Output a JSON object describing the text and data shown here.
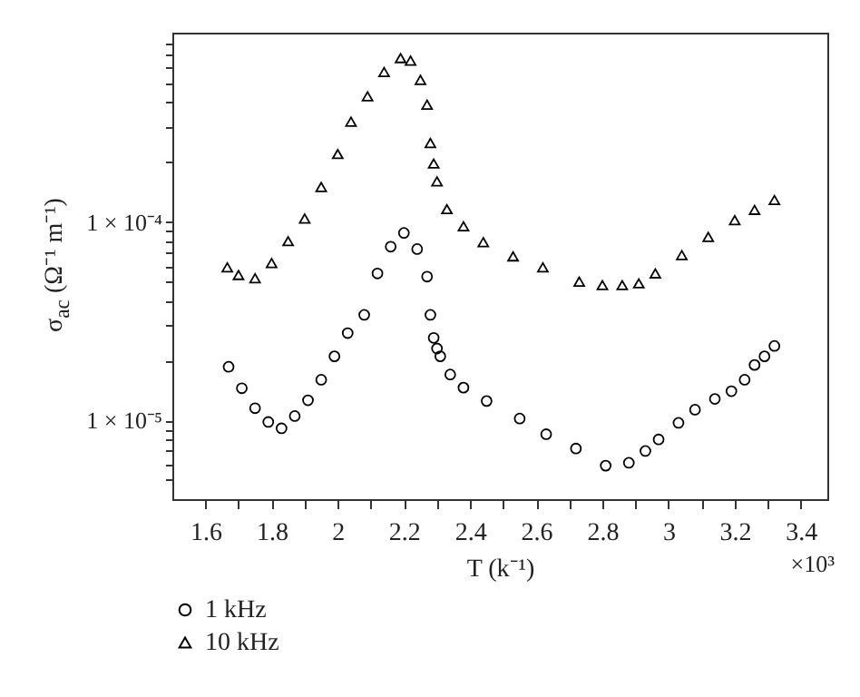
{
  "chart_data": {
    "type": "scatter",
    "xlabel": "T (k⁻¹)",
    "ylabel": "σ$_{ac}$ (Ω⁻¹ m⁻¹)",
    "annotations": [
      "×10³"
    ],
    "log": "y",
    "grid": false,
    "legend": "bottom left",
    "xlim": [
      1.5,
      3.48
    ],
    "ylim": [
      4e-06,
      0.0009
    ],
    "xticks": [
      1.6,
      {
        "value": 1.7,
        "label": null
      },
      1.8,
      {
        "value": 1.9,
        "label": null
      },
      2,
      {
        "value": 2.1,
        "label": null
      },
      2.2,
      {
        "value": 2.3,
        "label": null
      },
      2.4,
      {
        "value": 2.5,
        "label": null
      },
      2.6,
      {
        "value": 2.7,
        "label": null
      },
      2.8,
      {
        "value": 2.9,
        "label": null
      },
      3,
      {
        "value": 3.1,
        "label": null
      },
      3.2,
      {
        "value": 3.3,
        "label": null
      },
      3.4
    ],
    "yticks": [
      {
        "value": 5e-06,
        "label": null
      },
      {
        "value": 6e-06,
        "label": null
      },
      {
        "value": 7e-06,
        "label": null
      },
      {
        "value": 8e-06,
        "label": null
      },
      {
        "value": 9e-06,
        "label": null
      },
      {
        "value": 1e-05,
        "label": "1 × 10⁻⁵"
      },
      {
        "value": 2e-05,
        "label": null
      },
      {
        "value": 3e-05,
        "label": null
      },
      {
        "value": 4e-05,
        "label": null
      },
      {
        "value": 5e-05,
        "label": null
      },
      {
        "value": 6e-05,
        "label": null
      },
      {
        "value": 7e-05,
        "label": null
      },
      {
        "value": 8e-05,
        "label": null
      },
      {
        "value": 9e-05,
        "label": null
      },
      {
        "value": 0.0001,
        "label": "1 × 10⁻⁴"
      },
      {
        "value": 0.0002,
        "label": null
      },
      {
        "value": 0.0003,
        "label": null
      },
      {
        "value": 0.0004,
        "label": null
      },
      {
        "value": 0.0005,
        "label": null
      },
      {
        "value": 0.0006,
        "label": null
      },
      {
        "value": 0.0007,
        "label": null
      },
      {
        "value": 0.0008,
        "label": null
      }
    ],
    "series": [
      {
        "name": "1 kHz",
        "color": "#000000",
        "marker": "circle",
        "x": [
          1.67,
          1.71,
          1.75,
          1.79,
          1.83,
          1.87,
          1.91,
          1.95,
          1.99,
          2.03,
          2.08,
          2.12,
          2.16,
          2.2,
          2.24,
          2.27,
          2.28,
          2.29,
          2.3,
          2.31,
          2.34,
          2.38,
          2.45,
          2.55,
          2.63,
          2.72,
          2.81,
          2.88,
          2.93,
          2.97,
          3.03,
          3.08,
          3.14,
          3.19,
          3.23,
          3.26,
          3.29,
          3.32
        ],
        "values": [
          1.86e-05,
          1.45e-05,
          1.15e-05,
          9.8e-06,
          9.1e-06,
          1.05e-05,
          1.26e-05,
          1.6e-05,
          2.1e-05,
          2.75e-05,
          3.4e-05,
          5.5e-05,
          7.5e-05,
          8.8e-05,
          7.3e-05,
          5.3e-05,
          3.4e-05,
          2.6e-05,
          2.3e-05,
          2.1e-05,
          1.7e-05,
          1.46e-05,
          1.25e-05,
          1.02e-05,
          8.5e-06,
          7.2e-06,
          5.9e-06,
          6.1e-06,
          7e-06,
          8e-06,
          9.7e-06,
          1.13e-05,
          1.28e-05,
          1.4e-05,
          1.6e-05,
          1.9e-05,
          2.1e-05,
          2.37e-05
        ]
      },
      {
        "name": "10 kHz",
        "color": "#000000",
        "marker": "triangle-up",
        "x": [
          1.666,
          1.7,
          1.75,
          1.8,
          1.85,
          1.9,
          1.95,
          2.0,
          2.04,
          2.09,
          2.14,
          2.19,
          2.22,
          2.25,
          2.27,
          2.28,
          2.29,
          2.3,
          2.33,
          2.38,
          2.44,
          2.53,
          2.62,
          2.73,
          2.8,
          2.86,
          2.91,
          2.96,
          3.04,
          3.12,
          3.2,
          3.26,
          3.32
        ],
        "values": [
          5.9e-05,
          5.4e-05,
          5.2e-05,
          6.2e-05,
          8e-05,
          0.000104,
          0.00015,
          0.00022,
          0.00032,
          0.00043,
          0.00057,
          0.00067,
          0.00065,
          0.00052,
          0.00039,
          0.00025,
          0.000197,
          0.00016,
          0.000116,
          9.5e-05,
          7.9e-05,
          6.7e-05,
          5.9e-05,
          5e-05,
          4.8e-05,
          4.8e-05,
          4.9e-05,
          5.5e-05,
          6.8e-05,
          8.4e-05,
          0.000102,
          0.000115,
          0.000129
        ]
      }
    ]
  }
}
